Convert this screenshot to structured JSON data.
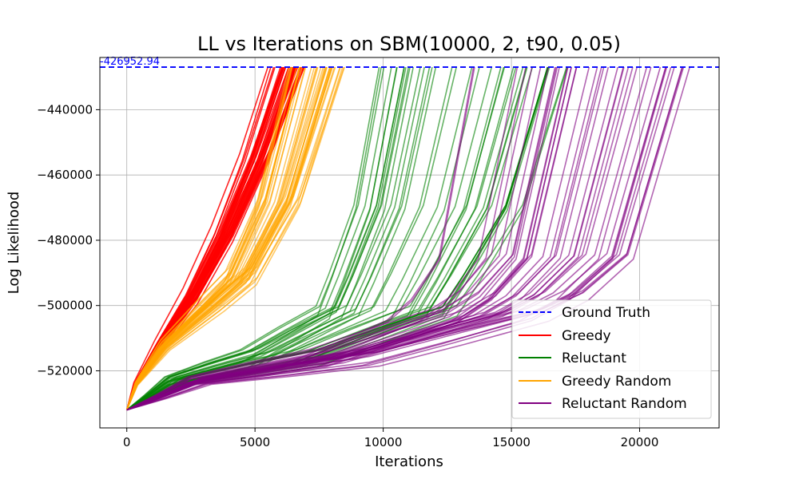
{
  "chart_data": {
    "type": "line",
    "title": "LL vs Iterations on SBM(10000, 2, t90, 0.05)",
    "xlabel": "Iterations",
    "ylabel": "Log Likelihood",
    "xlim": [
      -1050,
      23100
    ],
    "ylim": [
      -537500,
      -424000
    ],
    "x_ticks": [
      0,
      5000,
      10000,
      15000,
      20000
    ],
    "y_ticks": [
      -520000,
      -500000,
      -480000,
      -460000,
      -440000
    ],
    "x_tick_labels": [
      "0",
      "5000",
      "10000",
      "15000",
      "20000"
    ],
    "y_tick_labels": [
      "−520000",
      "−500000",
      "−480000",
      "−460000",
      "−440000"
    ],
    "grid": true,
    "legend_position": "bottom-right",
    "ground_truth": {
      "name": "Ground Truth",
      "value": -426952.94,
      "label": "-426952.94",
      "color": "#0000ff",
      "style": "dashed"
    },
    "start_value": -532000,
    "series": [
      {
        "name": "Greedy",
        "color": "#ff0000",
        "end_x_range": [
          5500,
          7000
        ],
        "shape": [
          [
            0,
            -532000
          ],
          [
            0.05,
            -524000
          ],
          [
            0.2,
            -512000
          ],
          [
            0.4,
            -497000
          ],
          [
            0.6,
            -478000
          ],
          [
            0.8,
            -455000
          ],
          [
            1.0,
            -426952.94
          ]
        ]
      },
      {
        "name": "Reluctant",
        "color": "#008000",
        "end_x_range": [
          9800,
          17200
        ],
        "shape": [
          [
            0,
            -532000
          ],
          [
            0.07,
            -528000
          ],
          [
            0.15,
            -523000
          ],
          [
            0.3,
            -519500
          ],
          [
            0.45,
            -516000
          ],
          [
            0.6,
            -509000
          ],
          [
            0.75,
            -502000
          ],
          [
            0.8,
            -492000
          ],
          [
            0.9,
            -470000
          ],
          [
            1.0,
            -426952.94
          ]
        ]
      },
      {
        "name": "Greedy Random",
        "color": "#ffa500",
        "end_x_range": [
          6200,
          8500
        ],
        "shape": [
          [
            0,
            -532000
          ],
          [
            0.05,
            -524000
          ],
          [
            0.2,
            -512000
          ],
          [
            0.45,
            -499000
          ],
          [
            0.6,
            -491000
          ],
          [
            0.8,
            -468000
          ],
          [
            1.0,
            -426952.94
          ]
        ]
      },
      {
        "name": "Reluctant Random",
        "color": "#800080",
        "end_x_range": [
          13500,
          22000
        ],
        "shape": [
          [
            0,
            -532000
          ],
          [
            0.07,
            -528000
          ],
          [
            0.15,
            -523000
          ],
          [
            0.3,
            -519500
          ],
          [
            0.45,
            -516000
          ],
          [
            0.6,
            -509500
          ],
          [
            0.75,
            -503000
          ],
          [
            0.82,
            -497000
          ],
          [
            0.9,
            -485000
          ],
          [
            1.0,
            -426952.94
          ]
        ]
      }
    ]
  }
}
